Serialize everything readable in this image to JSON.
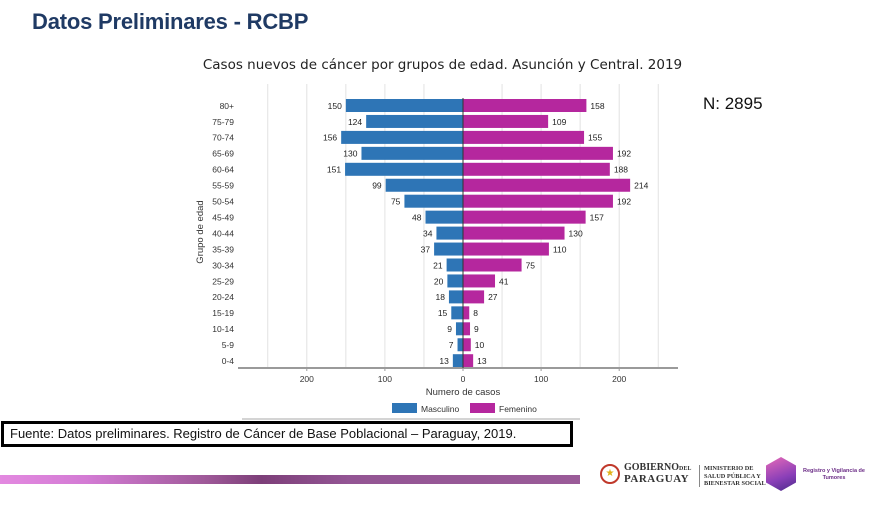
{
  "header": {
    "title": "Datos Preliminares - RCBP"
  },
  "n_label": "N: 2895",
  "source": "Fuente: Datos preliminares. Registro de Cáncer de Base Poblacional – Paraguay, 2019.",
  "logos": {
    "gov_line1": "GOBIERNO",
    "gov_line1_small": "DEL",
    "gov_line2": "PARAGUAY",
    "ministry": [
      "MINISTERIO DE",
      "SALUD PÚBLICA Y",
      "BIENESTAR SOCIAL"
    ],
    "registry": "Registro y Vigilancia de Tumores"
  },
  "chart_data": {
    "type": "bar",
    "orientation": "horizontal",
    "subtype": "population-pyramid",
    "title": "Casos nuevos de cáncer por grupos de edad. Asunción y Central. 2019",
    "xlabel": "Numero de casos",
    "ylabel": "Grupo de edad",
    "xlim": [
      -250,
      250
    ],
    "xticks": [
      -200,
      -100,
      0,
      100,
      200
    ],
    "xtick_labels": [
      "200",
      "100",
      "0",
      "100",
      "200"
    ],
    "grid": true,
    "legend_position": "bottom",
    "categories": [
      "80+",
      "75-79",
      "70-74",
      "65-69",
      "60-64",
      "55-59",
      "50-54",
      "45-49",
      "40-44",
      "35-39",
      "30-34",
      "25-29",
      "20-24",
      "15-19",
      "10-14",
      "5-9",
      "0-4"
    ],
    "series": [
      {
        "name": "Masculino",
        "color": "#2e75b6",
        "side": "left",
        "values": [
          150,
          124,
          156,
          130,
          151,
          99,
          75,
          48,
          34,
          37,
          21,
          20,
          18,
          15,
          9,
          7,
          13
        ]
      },
      {
        "name": "Femenino",
        "color": "#b5279e",
        "side": "right",
        "values": [
          158,
          109,
          155,
          192,
          188,
          214,
          192,
          157,
          130,
          110,
          75,
          41,
          27,
          8,
          9,
          10,
          13
        ]
      }
    ]
  }
}
